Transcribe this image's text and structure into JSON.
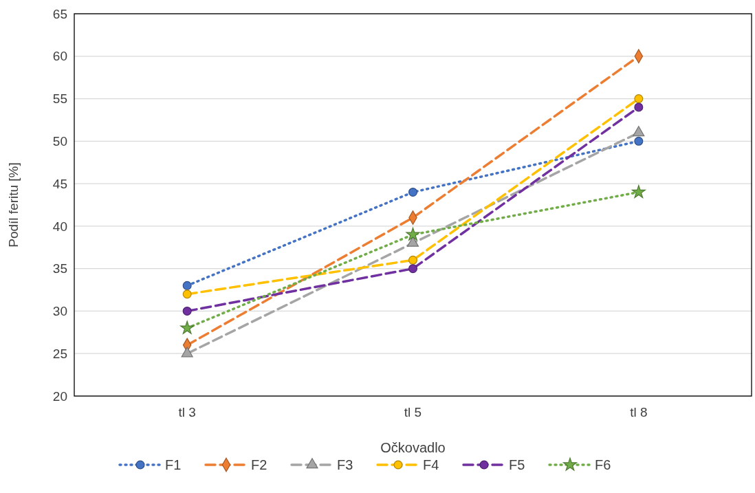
{
  "chart_data": {
    "type": "line",
    "xlabel": "Očkovadlo",
    "ylabel": "Podíl feritu [%]",
    "categories": [
      "tl 3",
      "tl 5",
      "tl 8"
    ],
    "ylim": [
      20,
      65
    ],
    "yticks": [
      20,
      25,
      30,
      35,
      40,
      45,
      50,
      55,
      60,
      65
    ],
    "grid": "y",
    "legend": "bottom",
    "series": [
      {
        "name": "F1",
        "color": "#4472c4",
        "values": [
          33,
          44,
          50
        ],
        "marker": "circle",
        "line_style": "dotted"
      },
      {
        "name": "F2",
        "color": "#ed7d31",
        "values": [
          26,
          41,
          60
        ],
        "marker": "diamond",
        "line_style": "dashed"
      },
      {
        "name": "F3",
        "color": "#a5a5a5",
        "values": [
          25,
          38,
          51
        ],
        "marker": "triangle",
        "line_style": "dashed"
      },
      {
        "name": "F4",
        "color": "#ffc000",
        "values": [
          32,
          36,
          55
        ],
        "marker": "circle",
        "line_style": "dashed"
      },
      {
        "name": "F5",
        "color": "#7030a0",
        "values": [
          30,
          35,
          54
        ],
        "marker": "circle",
        "line_style": "dashed"
      },
      {
        "name": "F6",
        "color": "#70ad47",
        "values": [
          28,
          39,
          44
        ],
        "marker": "star",
        "line_style": "dotted"
      }
    ]
  }
}
